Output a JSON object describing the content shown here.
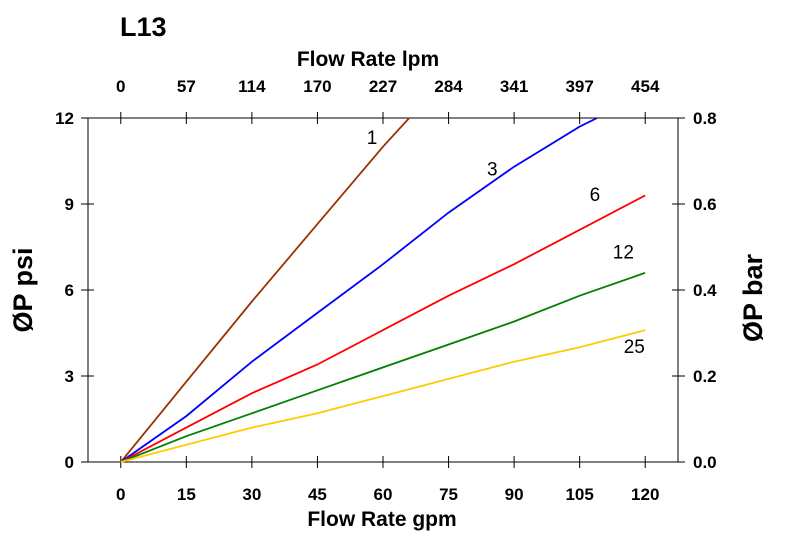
{
  "chart_data": {
    "type": "line",
    "title": "L13",
    "xlabel": "Flow Rate gpm",
    "x2label": "Flow Rate lpm",
    "ylabel": "ØP psi",
    "y2label": "ØP bar",
    "xlim": [
      -7.5,
      127.5
    ],
    "ylim": [
      0,
      12
    ],
    "y2lim": [
      0,
      0.8
    ],
    "x_ticks": [
      0,
      15,
      30,
      45,
      60,
      75,
      90,
      105,
      120
    ],
    "x_tick_labels": [
      "0",
      "15",
      "30",
      "45",
      "60",
      "75",
      "90",
      "105",
      "120"
    ],
    "x2_tick_labels": [
      "0",
      "57",
      "114",
      "170",
      "227",
      "284",
      "341",
      "397",
      "454"
    ],
    "y_ticks": [
      0,
      3,
      6,
      9,
      12
    ],
    "y_tick_labels": [
      "0",
      "3",
      "6",
      "9",
      "12"
    ],
    "y2_ticks": [
      0,
      0.2,
      0.4,
      0.6,
      0.8
    ],
    "y2_tick_labels": [
      "0.0",
      "0.2",
      "0.4",
      "0.6",
      "0.8"
    ],
    "grid": false,
    "series": [
      {
        "name": "1",
        "color": "#993300",
        "x": [
          0,
          15,
          30,
          45,
          60,
          66
        ],
        "y": [
          0,
          2.8,
          5.6,
          8.3,
          11.0,
          12.0
        ]
      },
      {
        "name": "3",
        "color": "#0000ff",
        "x": [
          0,
          15,
          30,
          45,
          60,
          75,
          90,
          105,
          109
        ],
        "y": [
          0,
          1.6,
          3.5,
          5.2,
          6.9,
          8.7,
          10.3,
          11.7,
          12.0
        ]
      },
      {
        "name": "6",
        "color": "#ff0000",
        "x": [
          0,
          15,
          30,
          45,
          60,
          75,
          90,
          105,
          120
        ],
        "y": [
          0,
          1.2,
          2.4,
          3.4,
          4.6,
          5.8,
          6.9,
          8.1,
          9.3
        ]
      },
      {
        "name": "12",
        "color": "#008000",
        "x": [
          0,
          15,
          30,
          45,
          60,
          75,
          90,
          105,
          120
        ],
        "y": [
          0,
          0.9,
          1.7,
          2.5,
          3.3,
          4.1,
          4.9,
          5.8,
          6.6
        ]
      },
      {
        "name": "25",
        "color": "#ffcc00",
        "x": [
          0,
          15,
          30,
          45,
          60,
          75,
          90,
          105,
          120
        ],
        "y": [
          0,
          0.6,
          1.2,
          1.7,
          2.3,
          2.9,
          3.5,
          4.0,
          4.6
        ]
      }
    ],
    "series_label_positions": [
      {
        "name": "1",
        "x": 57.5,
        "y": 11.1
      },
      {
        "name": "3",
        "x": 85,
        "y": 10.0
      },
      {
        "name": "6",
        "x": 108.5,
        "y": 9.1
      },
      {
        "name": "12",
        "x": 115,
        "y": 7.1
      },
      {
        "name": "25",
        "x": 117.5,
        "y": 3.8
      }
    ]
  }
}
